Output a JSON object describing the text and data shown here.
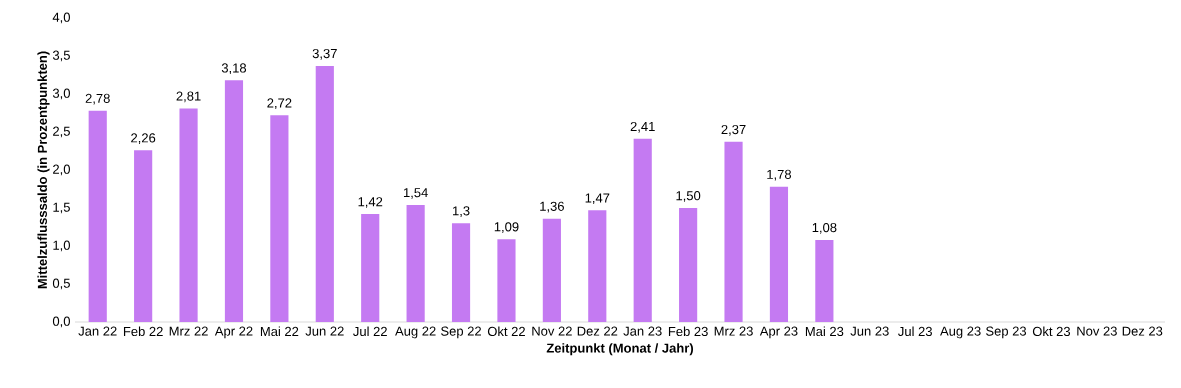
{
  "chart_data": {
    "type": "bar",
    "xlabel": "Zeitpunkt (Monat / Jahr)",
    "ylabel": "Mittelzuflusssaldo (in Prozentpunkten)",
    "categories": [
      "Jan 22",
      "Feb 22",
      "Mrz 22",
      "Apr 22",
      "Mai 22",
      "Jun 22",
      "Jul 22",
      "Aug 22",
      "Sep 22",
      "Okt 22",
      "Nov 22",
      "Dez 22",
      "Jan 23",
      "Feb 23",
      "Mrz 23",
      "Apr 23",
      "Mai 23",
      "Jun 23",
      "Jul 23",
      "Aug 23",
      "Sep 23",
      "Okt 23",
      "Nov 23",
      "Dez 23"
    ],
    "values": [
      2.78,
      2.26,
      2.81,
      3.18,
      2.72,
      3.37,
      1.42,
      1.54,
      1.3,
      1.09,
      1.36,
      1.47,
      2.41,
      1.5,
      2.37,
      1.78,
      1.08,
      null,
      null,
      null,
      null,
      null,
      null,
      null
    ],
    "value_labels": [
      "2,78",
      "2,26",
      "2,81",
      "3,18",
      "2,72",
      "3,37",
      "1,42",
      "1,54",
      "1,3",
      "1,09",
      "1,36",
      "1,47",
      "2,41",
      "1,50",
      "2,37",
      "1,78",
      "1,08",
      null,
      null,
      null,
      null,
      null,
      null,
      null
    ],
    "color": "#c47af2",
    "ylim": [
      0,
      4
    ],
    "yticks": [
      {
        "value": 0,
        "label": "0,0"
      },
      {
        "value": 0.5,
        "label": "0,5"
      },
      {
        "value": 1,
        "label": "1,0"
      },
      {
        "value": 1.5,
        "label": "1,5"
      },
      {
        "value": 2,
        "label": "2,0"
      },
      {
        "value": 2.5,
        "label": "2,5"
      },
      {
        "value": 3,
        "label": "3,0"
      },
      {
        "value": 3.5,
        "label": "3,5"
      },
      {
        "value": 4,
        "label": "4,0"
      }
    ]
  }
}
